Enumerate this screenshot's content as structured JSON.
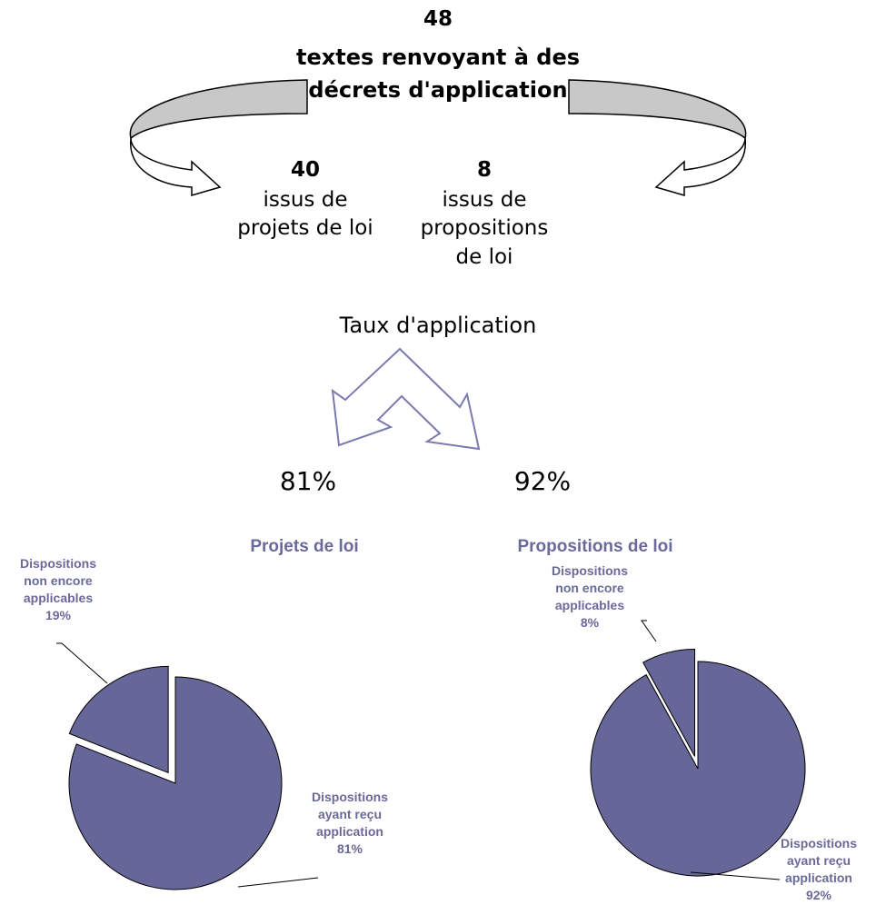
{
  "header": {
    "total": "48",
    "total_line1": "textes renvoyant à des",
    "total_line2": "décrets d'application",
    "left_count": "40",
    "left_line1": "issus de",
    "left_line2": "projets de loi",
    "right_count": "8",
    "right_line1": "issus de",
    "right_line2": "propositions",
    "right_line3": "de loi",
    "rate_title": "Taux d'application",
    "left_rate": "81%",
    "right_rate": "92%"
  },
  "colors": {
    "pie_fill": "#666699",
    "label_text": "#6a6a9a",
    "arrow_band": "#c8c8c8",
    "arrow_outline": "#7a7ab0"
  },
  "chart_data": [
    {
      "type": "pie",
      "title": "Projets de loi",
      "slices": [
        {
          "label": "Dispositions non encore applicables",
          "value": 19,
          "label_lines": [
            "Dispositions",
            "non encore",
            "applicables",
            "19%"
          ],
          "exploded": true
        },
        {
          "label": "Dispositions ayant reçu application",
          "value": 81,
          "label_lines": [
            "Dispositions",
            "ayant reçu",
            "application",
            "81%"
          ],
          "exploded": false
        }
      ]
    },
    {
      "type": "pie",
      "title": "Propositions de loi",
      "slices": [
        {
          "label": "Dispositions non encore applicables",
          "value": 8,
          "label_lines": [
            "Dispositions",
            "non encore",
            "applicables",
            "8%"
          ],
          "exploded": true
        },
        {
          "label": "Dispositions ayant reçu application",
          "value": 92,
          "label_lines": [
            "Dispositions",
            "ayant reçu",
            "application",
            "92%"
          ],
          "exploded": false
        }
      ]
    }
  ]
}
